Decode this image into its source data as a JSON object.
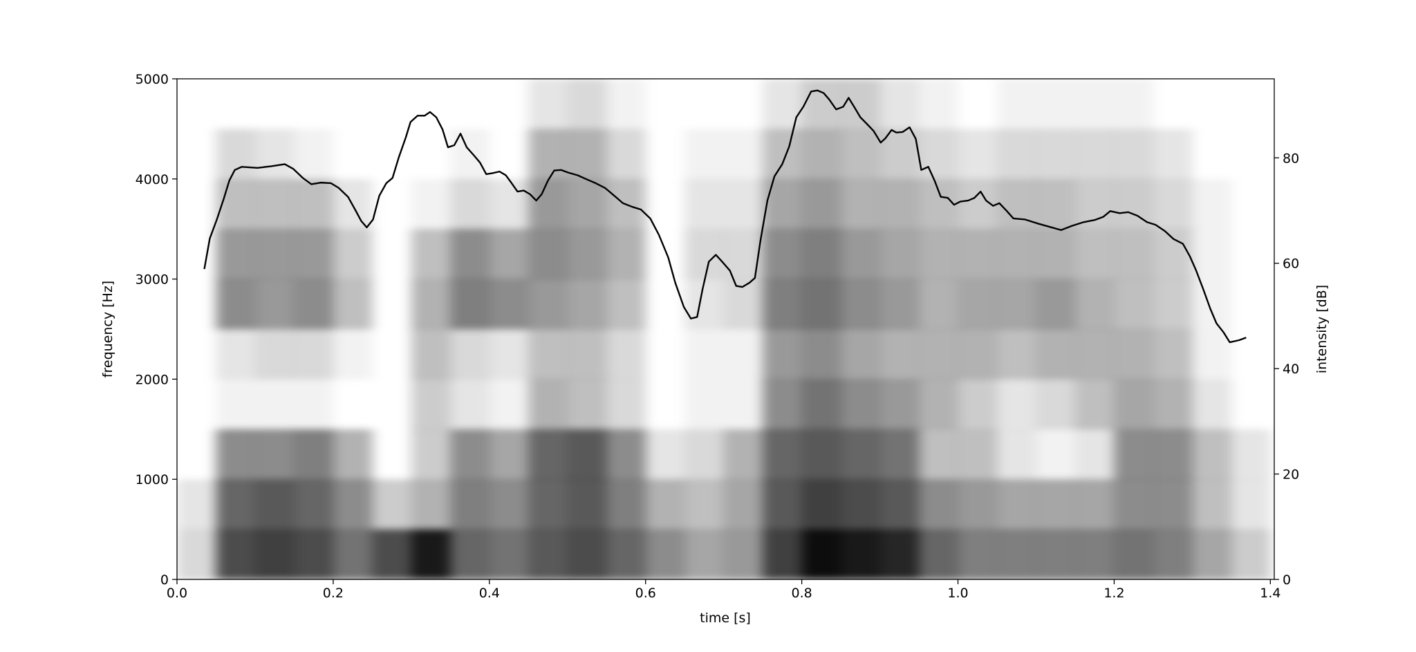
{
  "chart_data": {
    "type": "spectrogram",
    "xlabel": "time [s]",
    "ylabel": "frequency [Hz]",
    "y2label": "intensity [dB]",
    "xlim": [
      0,
      1.405
    ],
    "ylim": [
      0,
      5000
    ],
    "y2lim": [
      0,
      95
    ],
    "xticks": [
      {
        "value": 0,
        "label": "0.0"
      },
      0.2,
      0.4,
      0.6,
      0.8,
      {
        "value": 1,
        "label": "1.0"
      },
      1.2,
      1.4
    ],
    "yticks": [
      0,
      1000,
      2000,
      3000,
      4000,
      5000
    ],
    "y2ticks": [
      0,
      20,
      40,
      60,
      80
    ],
    "spectrogram": {
      "color": "#000000",
      "time_bins": [
        0,
        0.05,
        0.1,
        0.15,
        0.2,
        0.25,
        0.3,
        0.35,
        0.4,
        0.45,
        0.5,
        0.55,
        0.6,
        0.65,
        0.7,
        0.75,
        0.8,
        0.85,
        0.9,
        0.95,
        1,
        1.05,
        1.1,
        1.15,
        1.2,
        1.25,
        1.3,
        1.35,
        1.4
      ],
      "frequency_bins": [
        0,
        500,
        1000,
        1500,
        2000,
        2500,
        3000,
        3500,
        4000,
        4500,
        5000
      ],
      "levels": [
        [
          0.15,
          0.7,
          0.75,
          0.7,
          0.55,
          0.7,
          0.9,
          0.6,
          0.55,
          0.65,
          0.7,
          0.6,
          0.45,
          0.35,
          0.4,
          0.75,
          0.95,
          0.9,
          0.85,
          0.6,
          0.5,
          0.5,
          0.5,
          0.5,
          0.55,
          0.5,
          0.35,
          0.2
        ],
        [
          0.1,
          0.6,
          0.65,
          0.6,
          0.45,
          0.2,
          0.3,
          0.5,
          0.45,
          0.6,
          0.65,
          0.5,
          0.3,
          0.25,
          0.35,
          0.65,
          0.75,
          0.7,
          0.65,
          0.45,
          0.4,
          0.35,
          0.35,
          0.35,
          0.45,
          0.45,
          0.25,
          0.1
        ],
        [
          0,
          0.45,
          0.45,
          0.5,
          0.3,
          0,
          0.2,
          0.45,
          0.35,
          0.6,
          0.65,
          0.45,
          0.1,
          0.15,
          0.3,
          0.6,
          0.65,
          0.6,
          0.55,
          0.25,
          0.25,
          0.1,
          0.05,
          0.1,
          0.45,
          0.45,
          0.25,
          0.1
        ],
        [
          0,
          0.05,
          0.05,
          0.05,
          0,
          0,
          0.2,
          0.1,
          0.05,
          0.3,
          0.25,
          0.15,
          0,
          0.05,
          0.05,
          0.45,
          0.55,
          0.45,
          0.4,
          0.3,
          0.2,
          0.1,
          0.15,
          0.25,
          0.35,
          0.3,
          0.1,
          0
        ],
        [
          0,
          0.1,
          0.15,
          0.15,
          0.05,
          0,
          0.25,
          0.15,
          0.1,
          0.25,
          0.25,
          0.15,
          0,
          0.05,
          0.05,
          0.4,
          0.45,
          0.35,
          0.3,
          0.3,
          0.3,
          0.25,
          0.3,
          0.3,
          0.3,
          0.25,
          0.05,
          0
        ],
        [
          0,
          0.45,
          0.4,
          0.45,
          0.25,
          0,
          0.3,
          0.5,
          0.45,
          0.4,
          0.35,
          0.25,
          0,
          0.1,
          0.15,
          0.5,
          0.55,
          0.45,
          0.4,
          0.3,
          0.35,
          0.35,
          0.4,
          0.3,
          0.25,
          0.2,
          0.05,
          0
        ],
        [
          0,
          0.4,
          0.4,
          0.4,
          0.2,
          0,
          0.25,
          0.45,
          0.35,
          0.45,
          0.4,
          0.3,
          0,
          0.15,
          0.15,
          0.45,
          0.5,
          0.4,
          0.35,
          0.3,
          0.3,
          0.3,
          0.3,
          0.25,
          0.25,
          0.2,
          0.05,
          0
        ],
        [
          0,
          0.25,
          0.25,
          0.25,
          0.1,
          0,
          0.05,
          0.15,
          0.1,
          0.4,
          0.35,
          0.25,
          0,
          0.1,
          0.1,
          0.35,
          0.4,
          0.3,
          0.3,
          0.25,
          0.2,
          0.25,
          0.25,
          0.2,
          0.2,
          0.15,
          0.05,
          0
        ],
        [
          0,
          0.15,
          0.1,
          0.05,
          0,
          0,
          0,
          0.05,
          0,
          0.3,
          0.3,
          0.15,
          0,
          0.05,
          0.05,
          0.25,
          0.3,
          0.25,
          0.2,
          0.15,
          0.1,
          0.15,
          0.15,
          0.15,
          0.15,
          0.1,
          0,
          0
        ],
        [
          0,
          0,
          0,
          0,
          0,
          0,
          0,
          0,
          0,
          0.1,
          0.15,
          0.05,
          0,
          0,
          0,
          0.1,
          0.2,
          0.2,
          0.1,
          0.05,
          0,
          0.05,
          0.05,
          0.05,
          0.05,
          0,
          0,
          0
        ]
      ]
    },
    "series": [
      {
        "color": "#000000",
        "axis": "y2",
        "x": [
          0.035,
          0.042,
          0.051,
          0.06,
          0.067,
          0.074,
          0.083,
          0.103,
          0.12,
          0.138,
          0.149,
          0.161,
          0.172,
          0.184,
          0.197,
          0.207,
          0.219,
          0.228,
          0.236,
          0.243,
          0.251,
          0.259,
          0.268,
          0.276,
          0.284,
          0.293,
          0.299,
          0.308,
          0.317,
          0.324,
          0.332,
          0.34,
          0.347,
          0.355,
          0.363,
          0.371,
          0.38,
          0.388,
          0.396,
          0.404,
          0.413,
          0.421,
          0.428,
          0.436,
          0.444,
          0.452,
          0.46,
          0.467,
          0.475,
          0.483,
          0.492,
          0.501,
          0.513,
          0.525,
          0.536,
          0.548,
          0.56,
          0.571,
          0.583,
          0.594,
          0.606,
          0.617,
          0.629,
          0.638,
          0.649,
          0.658,
          0.666,
          0.673,
          0.681,
          0.69,
          0.698,
          0.708,
          0.716,
          0.724,
          0.733,
          0.74,
          0.747,
          0.756,
          0.765,
          0.775,
          0.784,
          0.793,
          0.802,
          0.812,
          0.82,
          0.828,
          0.835,
          0.844,
          0.853,
          0.86,
          0.867,
          0.875,
          0.883,
          0.892,
          0.901,
          0.907,
          0.915,
          0.921,
          0.929,
          0.938,
          0.946,
          0.953,
          0.962,
          0.97,
          0.978,
          0.987,
          0.995,
          1.003,
          1.013,
          1.021,
          1.029,
          1.036,
          1.045,
          1.053,
          1.062,
          1.071,
          1.086,
          1.103,
          1.12,
          1.132,
          1.146,
          1.161,
          1.175,
          1.186,
          1.195,
          1.207,
          1.218,
          1.23,
          1.242,
          1.253,
          1.265,
          1.276,
          1.288,
          1.297,
          1.305,
          1.314,
          1.323,
          1.331,
          1.34,
          1.348,
          1.36,
          1.369
        ],
        "values": [
          58.9,
          64.7,
          68.3,
          72.3,
          75.7,
          77.7,
          78.3,
          78.1,
          78.4,
          78.8,
          77.9,
          76.2,
          75.0,
          75.3,
          75.2,
          74.3,
          72.6,
          70.2,
          68.0,
          66.8,
          68.3,
          72.8,
          75.2,
          76.2,
          80.1,
          83.9,
          86.8,
          88.0,
          88.0,
          88.7,
          87.7,
          85.4,
          82.0,
          82.4,
          84.6,
          82.0,
          80.5,
          79.1,
          76.9,
          77.1,
          77.4,
          76.7,
          75.3,
          73.6,
          73.8,
          73.1,
          71.9,
          73.1,
          75.7,
          77.6,
          77.7,
          77.2,
          76.7,
          75.9,
          75.2,
          74.3,
          72.8,
          71.4,
          70.7,
          70.2,
          68.5,
          65.4,
          61.1,
          56.3,
          51.7,
          49.5,
          49.8,
          55.1,
          60.3,
          61.6,
          60.3,
          58.6,
          55.7,
          55.5,
          56.3,
          57.2,
          64.2,
          71.9,
          76.5,
          78.8,
          82.2,
          87.7,
          89.7,
          92.6,
          92.8,
          92.3,
          91.1,
          89.2,
          89.7,
          91.4,
          89.7,
          87.7,
          86.5,
          85.1,
          82.9,
          83.7,
          85.3,
          84.8,
          84.9,
          85.8,
          83.6,
          77.7,
          78.3,
          75.7,
          72.6,
          72.4,
          71.1,
          71.7,
          71.9,
          72.4,
          73.6,
          71.9,
          70.9,
          71.4,
          70.0,
          68.5,
          68.3,
          67.5,
          66.8,
          66.3,
          67.1,
          67.8,
          68.2,
          68.8,
          69.9,
          69.5,
          69.7,
          69.0,
          67.8,
          67.3,
          66.1,
          64.6,
          63.7,
          61.3,
          58.6,
          55.1,
          51.4,
          48.6,
          46.9,
          45.0,
          45.4,
          45.9
        ]
      }
    ]
  }
}
